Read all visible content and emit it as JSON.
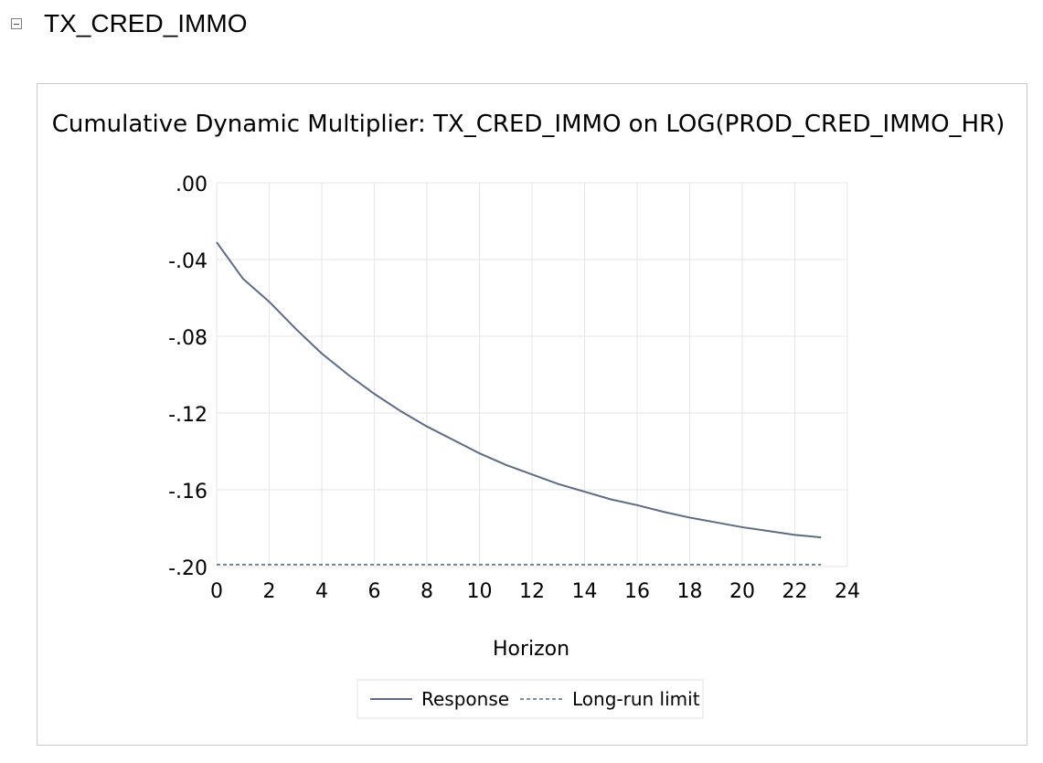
{
  "header": {
    "title": "TX_CRED_IMMO"
  },
  "chart_data": {
    "type": "line",
    "title": "Cumulative Dynamic Multiplier: TX_CRED_IMMO on LOG(PROD_CRED_IMMO_HR)",
    "xlabel": "Horizon",
    "ylabel": "",
    "xlim": [
      0,
      24
    ],
    "ylim": [
      -0.2,
      0.0
    ],
    "x_ticks": [
      "0",
      "2",
      "4",
      "6",
      "8",
      "10",
      "12",
      "14",
      "16",
      "18",
      "20",
      "22",
      "24"
    ],
    "y_ticks": [
      ".00",
      "-.04",
      "-.08",
      "-.12",
      "-.16",
      "-.20"
    ],
    "grid": true,
    "legend_position": "bottom-center",
    "series": [
      {
        "name": "Response",
        "style": "solid",
        "color": "#5f6b80",
        "x": [
          0,
          1,
          2,
          3,
          4,
          5,
          6,
          7,
          8,
          9,
          10,
          11,
          12,
          13,
          14,
          15,
          16,
          17,
          18,
          19,
          20,
          21,
          22,
          23
        ],
        "values": [
          -0.031,
          -0.05,
          -0.062,
          -0.076,
          -0.089,
          -0.1,
          -0.11,
          -0.119,
          -0.127,
          -0.134,
          -0.141,
          -0.147,
          -0.152,
          -0.157,
          -0.161,
          -0.165,
          -0.168,
          -0.1715,
          -0.1745,
          -0.177,
          -0.1795,
          -0.1815,
          -0.1835,
          -0.1848
        ]
      },
      {
        "name": "Long-run limit",
        "style": "dashed",
        "color": "#5f6b80",
        "x": [
          0,
          23
        ],
        "values": [
          -0.199,
          -0.199
        ]
      }
    ]
  }
}
